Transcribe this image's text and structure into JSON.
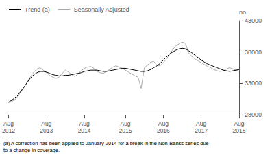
{
  "chart_data": {
    "type": "line",
    "ylabel": "no.",
    "annotations": [
      "(a) A correction has been applied to January 2014 for a break in the Non-Banks series due\nto a change in coverage."
    ],
    "categories": [
      "Aug\n2012",
      null,
      null,
      null,
      null,
      null,
      null,
      null,
      null,
      null,
      null,
      null,
      "Aug\n2013",
      null,
      null,
      null,
      null,
      null,
      null,
      null,
      null,
      null,
      null,
      null,
      "Aug\n2014",
      null,
      null,
      null,
      null,
      null,
      null,
      null,
      null,
      null,
      null,
      null,
      null,
      "Aug\n2015",
      null,
      null,
      null,
      null,
      null,
      null,
      null,
      null,
      null,
      null,
      null,
      "Aug\n2016",
      null,
      null,
      null,
      null,
      null,
      null,
      null,
      null,
      null,
      null,
      null,
      "Aug\n2017",
      null,
      null,
      null,
      null,
      null,
      null,
      null,
      null,
      null,
      null,
      null,
      "Aug\n2018"
    ],
    "series": [
      {
        "name": "Trend (a)",
        "color": "#000000",
        "values": [
          30000,
          30300,
          30700,
          31200,
          31800,
          32500,
          33200,
          33900,
          34400,
          34700,
          34900,
          34900,
          34800,
          34600,
          34400,
          34300,
          34200,
          34200,
          34300,
          34300,
          34400,
          34500,
          34600,
          34700,
          34900,
          35000,
          35100,
          35100,
          35100,
          35000,
          34900,
          34900,
          35000,
          35100,
          35200,
          35300,
          35400,
          35400,
          35300,
          35200,
          35100,
          35000,
          34900,
          34900,
          35000,
          35200,
          35500,
          35800,
          36200,
          36700,
          37200,
          37700,
          38000,
          38300,
          38500,
          38600,
          38500,
          38200,
          37900,
          37500,
          37100,
          36700,
          36400,
          36100,
          35900,
          35700,
          35500,
          35300,
          35100,
          35000,
          34900,
          35000,
          35100,
          35200
        ]
      },
      {
        "name": "Seasonally Adjusted",
        "color": "#aaaaaa",
        "values": [
          29900,
          30100,
          30400,
          31000,
          31700,
          32400,
          33300,
          34100,
          34800,
          35300,
          35500,
          35100,
          34700,
          34300,
          34000,
          33800,
          34000,
          34600,
          35100,
          34800,
          34400,
          34100,
          34500,
          35000,
          35400,
          35600,
          35700,
          35400,
          34900,
          34700,
          34600,
          34900,
          35200,
          35600,
          35800,
          35600,
          35400,
          35100,
          34800,
          34500,
          34200,
          34000,
          32200,
          35500,
          35900,
          36400,
          36500,
          35900,
          35800,
          36300,
          36900,
          37600,
          38400,
          39000,
          39300,
          39600,
          39400,
          37900,
          37300,
          36900,
          36600,
          36300,
          36000,
          35700,
          35500,
          35200,
          35000,
          34900,
          35000,
          35300,
          35500,
          35300,
          35100,
          34900
        ]
      }
    ],
    "ylim": [
      28000,
      43000
    ],
    "yticks": [
      28000,
      33000,
      38000,
      43000
    ],
    "grid": false,
    "legend": "upper left"
  }
}
